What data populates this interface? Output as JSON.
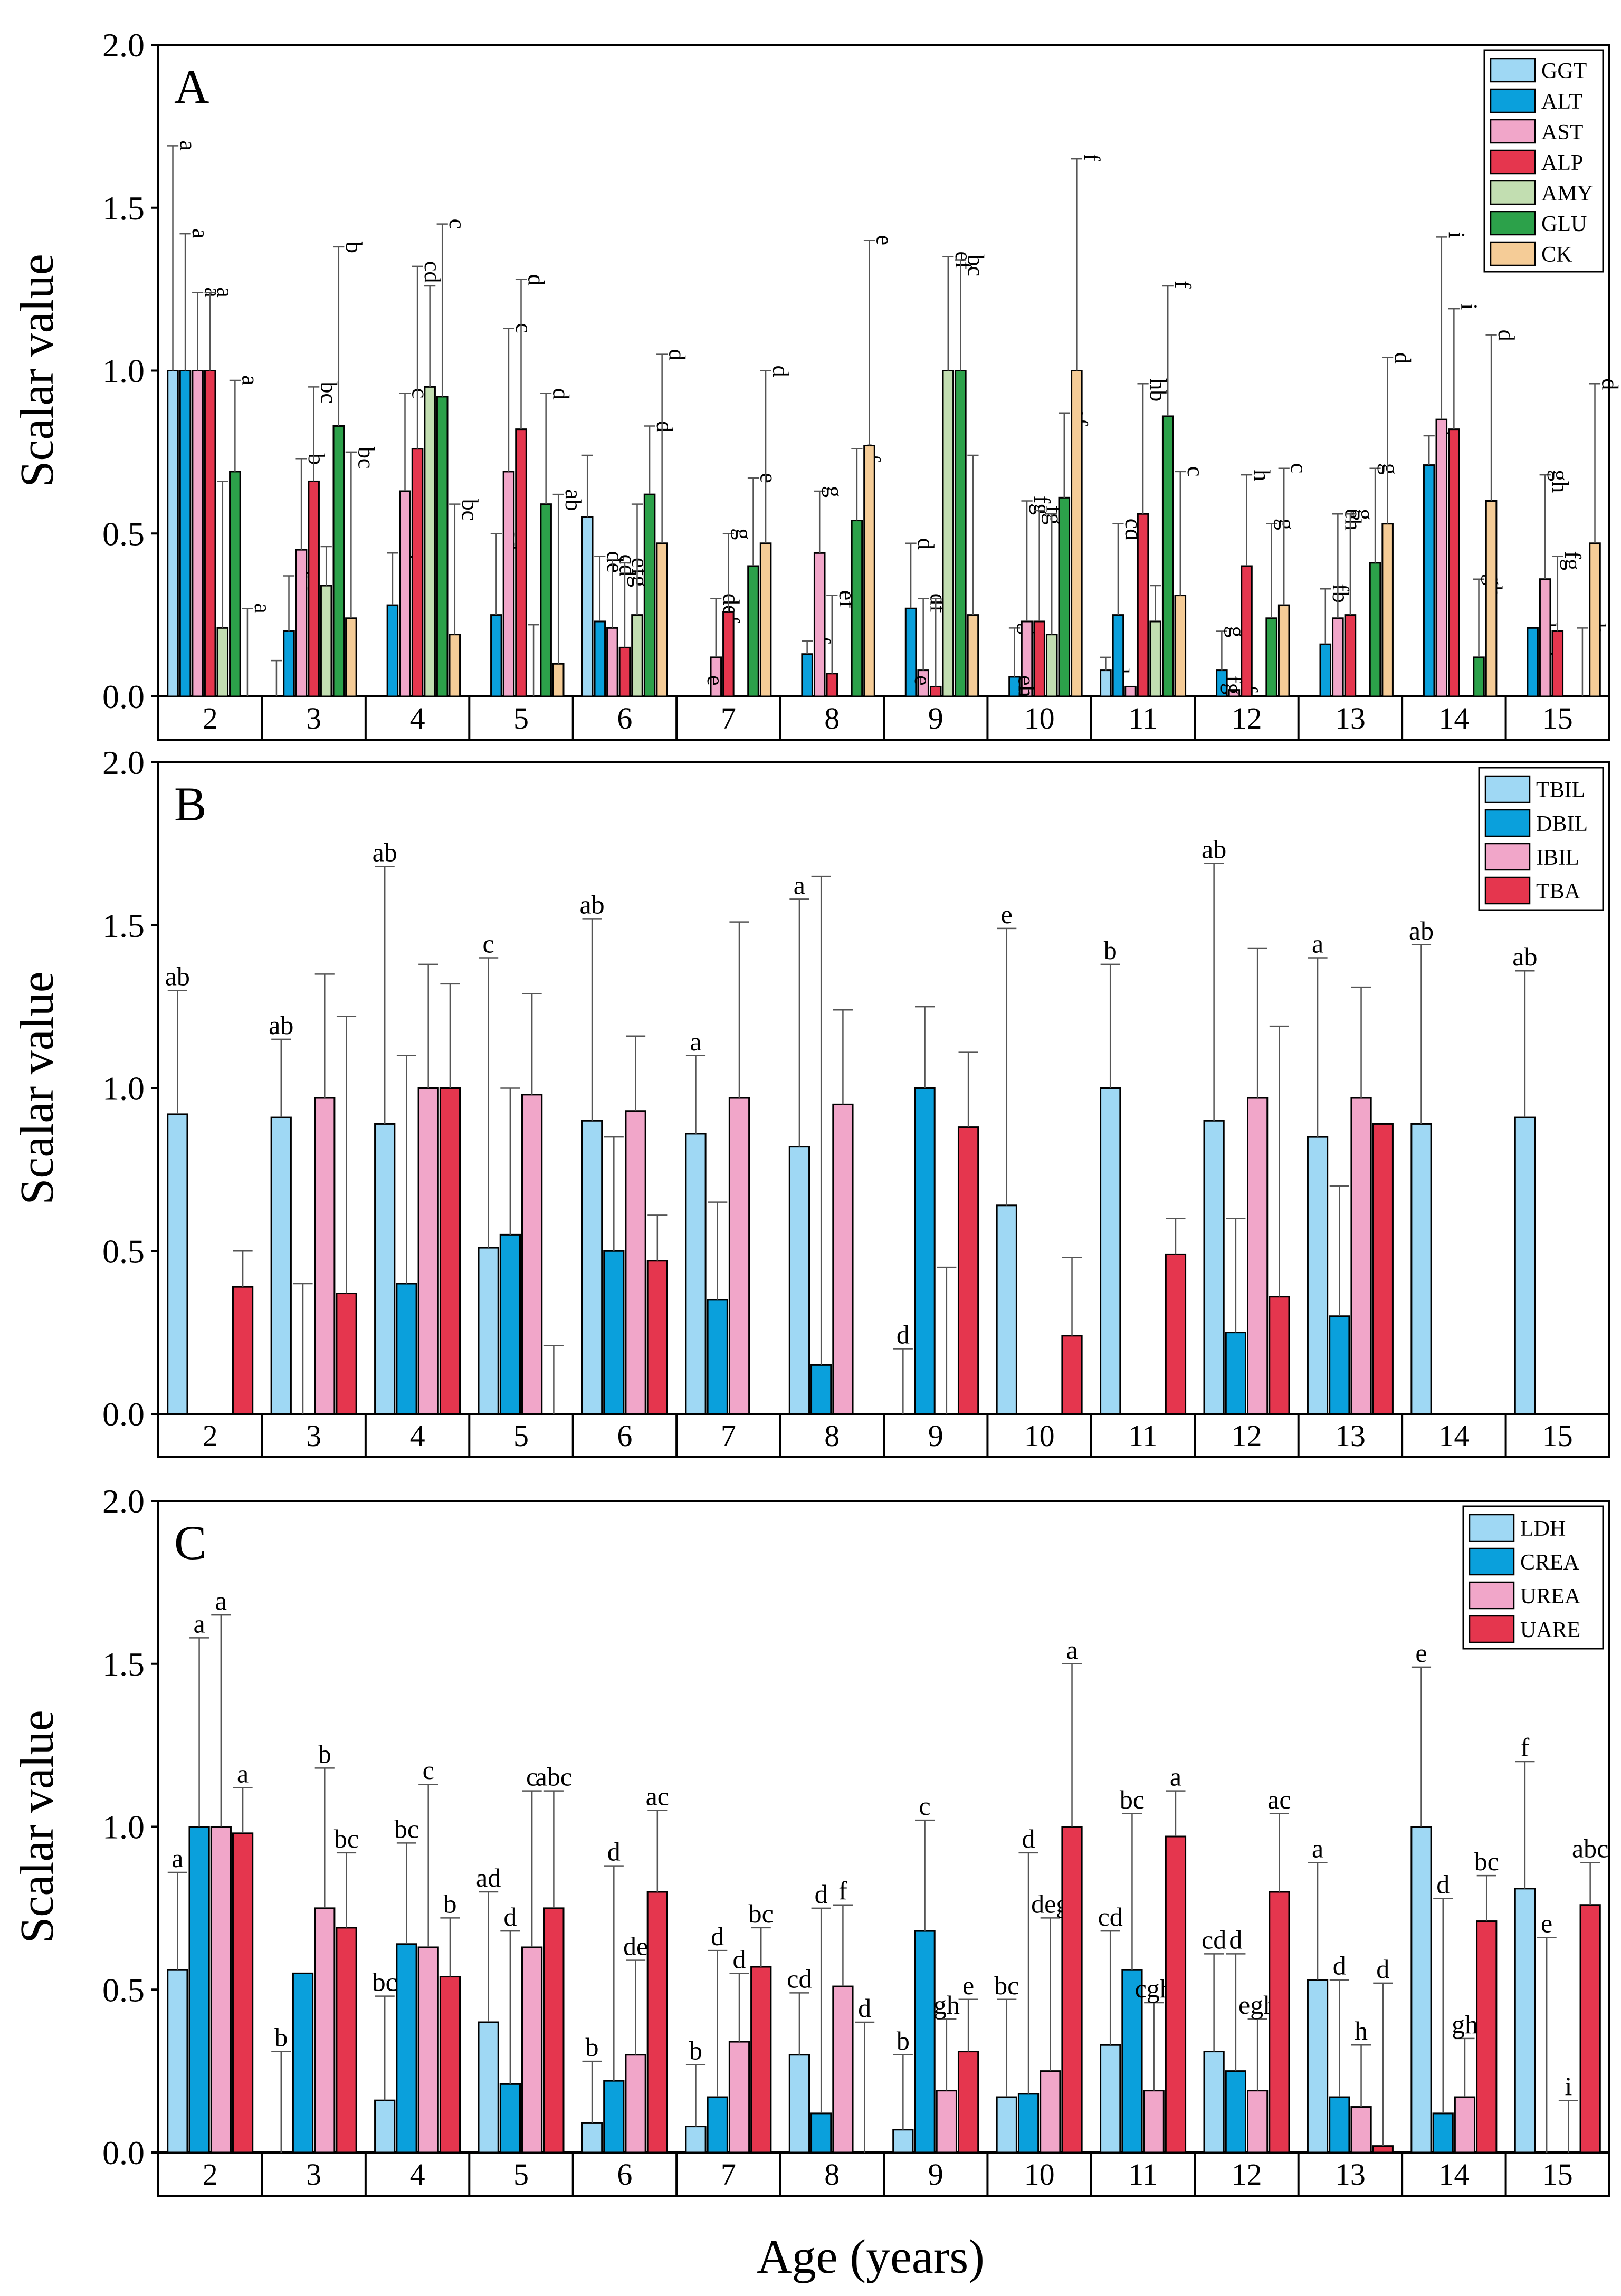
{
  "figure": {
    "xlabel": "Age (years)",
    "ylabel": "Scalar value"
  },
  "chart_data": [
    {
      "type": "bar",
      "panel": "A",
      "ylabel": "Scalar value",
      "ylim": [
        0,
        2
      ],
      "yticks": [
        "0.0",
        "0.5",
        "1.0",
        "1.5",
        "2.0"
      ],
      "legend_position": "top-right",
      "categories": [
        "2",
        "3",
        "4",
        "5",
        "6",
        "7",
        "8",
        "9",
        "10",
        "11",
        "12",
        "13",
        "14",
        "15"
      ],
      "series": [
        {
          "name": "GGT",
          "color": "#9fd8f4",
          "values": [
            1.0,
            0.0,
            0.0,
            0.0,
            0.55,
            0.0,
            0.0,
            0.0,
            0.0,
            0.08,
            0.0,
            0.0,
            0.0,
            0.0
          ],
          "errors": [
            0.69,
            0.11,
            0.0,
            0.0,
            0.19,
            0.0,
            0.0,
            0.0,
            0.0,
            0.04,
            0.0,
            0.0,
            0.0,
            0.0
          ],
          "letters": [
            "a",
            "",
            "",
            "",
            "",
            "",
            "",
            "",
            "",
            "cd",
            "",
            "",
            "",
            ""
          ]
        },
        {
          "name": "ALT",
          "color": "#0aa0dc",
          "values": [
            1.0,
            0.2,
            0.28,
            0.25,
            0.23,
            0.0,
            0.13,
            0.27,
            0.06,
            0.25,
            0.08,
            0.16,
            0.71,
            0.21
          ],
          "errors": [
            0.42,
            0.17,
            0.16,
            0.25,
            0.2,
            0.0,
            0.04,
            0.2,
            0.15,
            0.28,
            0.12,
            0.17,
            0.09,
            0.0
          ],
          "letters": [
            "a",
            "bc",
            "d",
            "cd",
            "de",
            "",
            "f",
            "d",
            "g",
            "cd",
            "g",
            "fb",
            "h",
            "bcd"
          ]
        },
        {
          "name": "AST",
          "color": "#f1a6c9",
          "values": [
            1.0,
            0.45,
            0.63,
            0.69,
            0.21,
            0.12,
            0.44,
            0.08,
            0.23,
            0.03,
            0.02,
            0.24,
            0.85,
            0.36
          ],
          "errors": [
            0.24,
            0.28,
            0.3,
            0.44,
            0.21,
            0.18,
            0.19,
            0.22,
            0.37,
            0.0,
            0.0,
            0.32,
            0.56,
            0.32
          ],
          "letters": [
            "a",
            "b",
            "c",
            "c",
            "cd",
            "def",
            "g",
            "df",
            "fg",
            "",
            "f",
            "eh",
            "i",
            "gh"
          ]
        },
        {
          "name": "ALP",
          "color": "#e5364e",
          "values": [
            1.0,
            0.66,
            0.76,
            0.82,
            0.15,
            0.26,
            0.07,
            0.03,
            0.23,
            0.56,
            0.4,
            0.25,
            0.82,
            0.2
          ],
          "errors": [
            0.24,
            0.29,
            0.56,
            0.46,
            0.26,
            0.24,
            0.24,
            0.27,
            0.34,
            0.4,
            0.28,
            0.31,
            0.37,
            0.23
          ],
          "letters": [
            "a",
            "bc",
            "cd",
            "d",
            "efg",
            "g",
            "ef",
            "e",
            "fg",
            "hb",
            "h",
            "g",
            "i",
            "fg"
          ]
        },
        {
          "name": "AMY",
          "color": "#c2deb1",
          "values": [
            0.21,
            0.34,
            0.95,
            0.0,
            0.25,
            0.0,
            0.0,
            1.0,
            0.19,
            0.23,
            0.0,
            0.0,
            0.0,
            0.0
          ],
          "errors": [
            0.45,
            0.12,
            0.31,
            0.22,
            0.34,
            0.0,
            0.0,
            0.35,
            0.37,
            0.11,
            0.0,
            0.0,
            0.0,
            0.0
          ],
          "letters": [
            "",
            "",
            "",
            "",
            "",
            "",
            "",
            "ef",
            "",
            "",
            "",
            "",
            "",
            ""
          ]
        },
        {
          "name": "GLU",
          "color": "#2ca14a",
          "values": [
            0.69,
            0.83,
            0.92,
            0.59,
            0.62,
            0.4,
            0.54,
            1.0,
            0.61,
            0.86,
            0.24,
            0.41,
            0.12,
            0.0
          ],
          "errors": [
            0.28,
            0.55,
            0.53,
            0.34,
            0.21,
            0.27,
            0.22,
            0.34,
            0.26,
            0.4,
            0.29,
            0.29,
            0.24,
            0.21
          ],
          "letters": [
            "a",
            "b",
            "c",
            "d",
            "d",
            "e",
            "ef",
            "bc",
            "ef",
            "f",
            "g",
            "g",
            "gh",
            "h"
          ]
        },
        {
          "name": "CK",
          "color": "#f5cc97",
          "values": [
            0.0,
            0.24,
            0.19,
            0.1,
            0.47,
            0.47,
            0.77,
            0.25,
            1.0,
            0.31,
            0.28,
            0.53,
            0.6,
            0.47
          ],
          "errors": [
            0.27,
            0.51,
            0.4,
            0.52,
            0.58,
            0.53,
            0.63,
            0.49,
            0.65,
            0.38,
            0.42,
            0.51,
            0.51,
            0.49
          ],
          "letters": [
            "a",
            "bc",
            "bc",
            "ab",
            "d",
            "d",
            "e",
            "",
            "f",
            "c",
            "c",
            "d",
            "d",
            "d"
          ]
        }
      ],
      "extra_letters": [
        {
          "category": "7",
          "letter": "e"
        },
        {
          "category": "9",
          "letter": "e"
        },
        {
          "category": "10",
          "letter": "eh"
        },
        {
          "category": "12",
          "letter": "fg"
        }
      ]
    },
    {
      "type": "bar",
      "panel": "B",
      "ylabel": "Scalar value",
      "ylim": [
        0,
        2
      ],
      "yticks": [
        "0.0",
        "0.5",
        "1.0",
        "1.5",
        "2.0"
      ],
      "legend_position": "top-right",
      "categories": [
        "2",
        "3",
        "4",
        "5",
        "6",
        "7",
        "8",
        "9",
        "10",
        "11",
        "12",
        "13",
        "14",
        "15"
      ],
      "series": [
        {
          "name": "TBIL",
          "color": "#9fd8f4",
          "values": [
            0.92,
            0.91,
            0.89,
            0.51,
            0.9,
            0.86,
            0.82,
            0.0,
            0.64,
            1.0,
            0.9,
            0.85,
            0.89,
            0.91
          ],
          "errors": [
            0.38,
            0.24,
            0.79,
            0.89,
            0.62,
            0.24,
            0.76,
            0.2,
            0.85,
            0.38,
            0.79,
            0.55,
            0.55,
            0.45
          ],
          "letters": [
            "ab",
            "ab",
            "ab",
            "c",
            "ab",
            "a",
            "a",
            "d",
            "e",
            "b",
            "ab",
            "a",
            "ab",
            "ab"
          ]
        },
        {
          "name": "DBIL",
          "color": "#0aa0dc",
          "values": [
            0.0,
            0.0,
            0.4,
            0.55,
            0.5,
            0.35,
            0.15,
            1.0,
            0.0,
            0.0,
            0.25,
            0.3,
            0.0,
            0.0
          ],
          "errors": [
            0.0,
            0.4,
            0.7,
            0.45,
            0.35,
            0.3,
            1.5,
            0.25,
            0.0,
            0.0,
            0.35,
            0.4,
            0.0,
            0.0
          ],
          "letters": [
            "",
            "",
            "",
            "",
            "",
            "",
            "",
            "",
            "",
            "",
            "",
            "",
            "",
            ""
          ]
        },
        {
          "name": "IBIL",
          "color": "#f1a6c9",
          "values": [
            0.0,
            0.97,
            1.0,
            0.98,
            0.93,
            0.97,
            0.95,
            0.0,
            0.0,
            0.0,
            0.97,
            0.97,
            0.0,
            0.0
          ],
          "errors": [
            0.0,
            0.38,
            0.38,
            0.31,
            0.23,
            0.54,
            0.29,
            0.45,
            0.0,
            0.0,
            0.46,
            0.34,
            0.0,
            0.0
          ],
          "letters": [
            "",
            "",
            "",
            "",
            "",
            "",
            "",
            "",
            "",
            "",
            "",
            "",
            "",
            ""
          ]
        },
        {
          "name": "TBA",
          "color": "#e5364e",
          "values": [
            0.39,
            0.37,
            1.0,
            0.0,
            0.47,
            0.0,
            0.0,
            0.88,
            0.24,
            0.49,
            0.36,
            0.89,
            0.0,
            0.0
          ],
          "errors": [
            0.11,
            0.85,
            0.32,
            0.21,
            0.14,
            0.0,
            0.0,
            0.23,
            0.24,
            0.11,
            0.83,
            0.0,
            0.0,
            0.0
          ],
          "letters": [
            "",
            "",
            "",
            "",
            "",
            "",
            "",
            "",
            "",
            "",
            "",
            "",
            "",
            ""
          ]
        }
      ]
    },
    {
      "type": "bar",
      "panel": "C",
      "ylabel": "Scalar value",
      "ylim": [
        0,
        2
      ],
      "yticks": [
        "0.0",
        "0.5",
        "1.0",
        "1.5",
        "2.0"
      ],
      "legend_position": "top-right",
      "categories": [
        "2",
        "3",
        "4",
        "5",
        "6",
        "7",
        "8",
        "9",
        "10",
        "11",
        "12",
        "13",
        "14",
        "15"
      ],
      "series": [
        {
          "name": "LDH",
          "color": "#9fd8f4",
          "values": [
            0.56,
            0.0,
            0.16,
            0.4,
            0.09,
            0.08,
            0.3,
            0.07,
            0.17,
            0.33,
            0.31,
            0.53,
            1.0,
            0.81
          ],
          "errors": [
            0.3,
            0.31,
            0.32,
            0.4,
            0.19,
            0.19,
            0.19,
            0.23,
            0.3,
            0.35,
            0.3,
            0.36,
            0.49,
            0.39
          ],
          "letters": [
            "a",
            "b",
            "bc",
            "ad",
            "b",
            "b",
            "cd",
            "b",
            "bc",
            "cd",
            "cd",
            "a",
            "e",
            "f"
          ]
        },
        {
          "name": "CREA",
          "color": "#0aa0dc",
          "values": [
            1.0,
            0.55,
            0.64,
            0.21,
            0.22,
            0.17,
            0.12,
            0.68,
            0.18,
            0.56,
            0.25,
            0.17,
            0.12,
            0.0
          ],
          "errors": [
            0.58,
            0.0,
            0.31,
            0.47,
            0.66,
            0.45,
            0.63,
            0.34,
            0.74,
            0.48,
            0.36,
            0.36,
            0.66,
            0.66
          ],
          "letters": [
            "a",
            "",
            "bc",
            "d",
            "d",
            "d",
            "d",
            "c",
            "d",
            "bc",
            "d",
            "d",
            "d",
            "e"
          ]
        },
        {
          "name": "UREA",
          "color": "#f1a6c9",
          "values": [
            1.0,
            0.75,
            0.63,
            0.63,
            0.3,
            0.34,
            0.51,
            0.19,
            0.25,
            0.19,
            0.19,
            0.14,
            0.17,
            0.0
          ],
          "errors": [
            0.65,
            0.43,
            0.5,
            0.48,
            0.29,
            0.21,
            0.25,
            0.22,
            0.47,
            0.27,
            0.22,
            0.19,
            0.18,
            0.16
          ],
          "letters": [
            "a",
            "b",
            "c",
            "c",
            "de",
            "d",
            "f",
            "gh",
            "deg",
            "cgh",
            "egh",
            "h",
            "gh",
            "i"
          ]
        },
        {
          "name": "UARE",
          "color": "#e5364e",
          "values": [
            0.98,
            0.69,
            0.54,
            0.75,
            0.8,
            0.57,
            0.0,
            0.31,
            1.0,
            0.97,
            0.8,
            0.02,
            0.71,
            0.76
          ],
          "errors": [
            0.14,
            0.23,
            0.18,
            0.36,
            0.25,
            0.12,
            0.4,
            0.16,
            0.5,
            0.14,
            0.24,
            0.5,
            0.14,
            0.13
          ],
          "letters": [
            "a",
            "bc",
            "b",
            "abc",
            "ac",
            "bc",
            "d",
            "e",
            "a",
            "a",
            "ac",
            "d",
            "bc",
            "abc"
          ]
        }
      ]
    }
  ]
}
